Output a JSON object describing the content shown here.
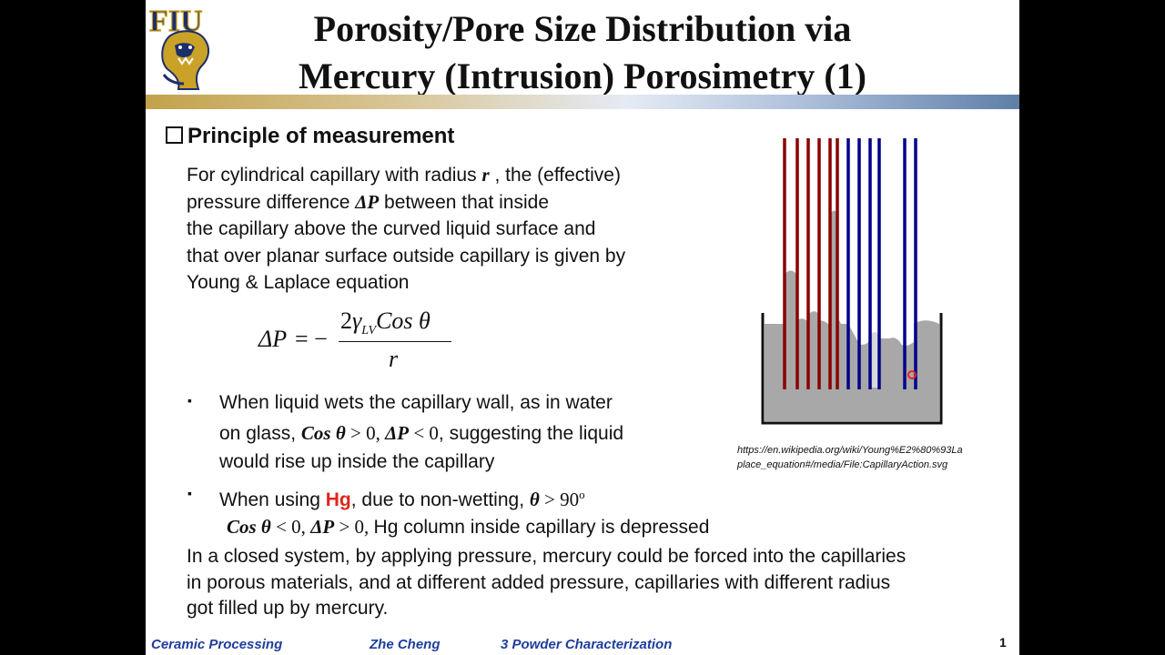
{
  "slide": {
    "title_line1": "Porosity/Pore Size Distribution via",
    "title_line2": "Mercury (Intrusion) Porosimetry (1)",
    "logo_text": "FIU",
    "heading": "Principle of measurement",
    "para1": {
      "t1": "For cylindrical capillary with radius ",
      "r": "r",
      "t2": " , the (effective)",
      "t3": "pressure difference ",
      "dp": "ΔP",
      "t4": " between that inside",
      "line3": "the capillary above the curved liquid surface and",
      "line4": "that over planar surface outside capillary is given by",
      "line5": "Young & Laplace equation"
    },
    "formula": {
      "lhs": "ΔP",
      "eq": "= −",
      "numerator_a": "2",
      "gamma": "γ",
      "sub": "LV",
      "numerator_b": "Cos θ",
      "denominator": "r"
    },
    "bullet1": {
      "mark": "▪",
      "line1": "When liquid wets the capillary wall, as in water",
      "t1": "on glass, ",
      "cos": "Cos θ",
      "gt0": " > 0, ",
      "dp": "ΔP",
      "lt0": " < 0",
      "t2": ", suggesting the liquid",
      "line3": "would rise up inside the capillary"
    },
    "bullet2": {
      "mark": "▪",
      "t1": "When using ",
      "hg": "Hg",
      "t2": ", due to non-wetting, ",
      "theta": "θ",
      "gt90": " > 90",
      "deg": "o",
      "cos": "Cos θ",
      "lt0": " < 0, ",
      "dp": "ΔP",
      "gt0": " > 0, ",
      "t3": "Hg column inside capillary is depressed"
    },
    "para2": {
      "line1": "In a closed system, by applying pressure, mercury could be forced into the capillaries",
      "line2": "in porous materials, and at different added pressure, capillaries with different radius",
      "line3": "got filled up by mercury."
    },
    "source_line1": "https://en.wikipedia.org/wiki/Young%E2%80%93La",
    "source_line2": "place_equation#/media/File:CapillaryAction.svg",
    "footer": {
      "course": "Ceramic Processing",
      "author": "Zhe Cheng",
      "chapter": "3  Powder Characterization",
      "page": "1"
    }
  },
  "colors": {
    "wetting_tube": "#8b0000",
    "nonwetting_tube": "#00008b",
    "liquid": "#a8a8a8",
    "footer_text": "#1f3e9e",
    "hg_highlight": "#e0261a"
  },
  "icons": [
    "heading-checkbox-icon",
    "fiu-panther-logo",
    "capillary-action-diagram",
    "cursor-dot-icon"
  ]
}
